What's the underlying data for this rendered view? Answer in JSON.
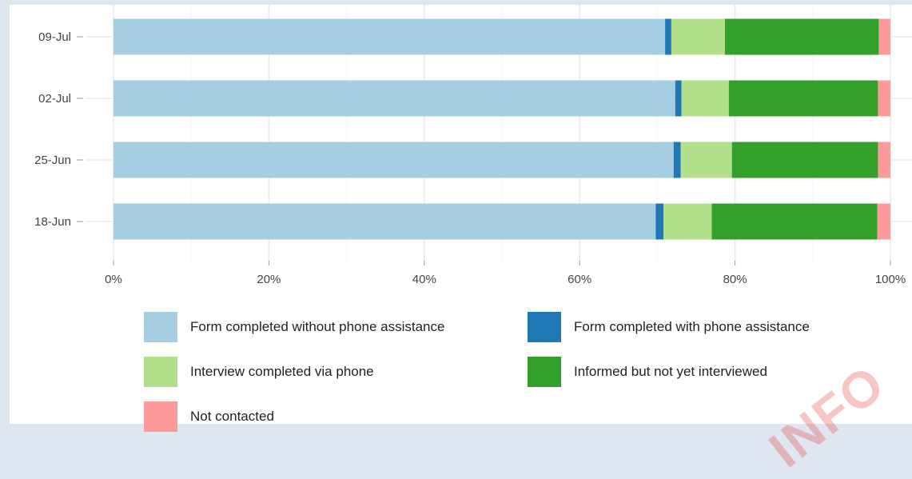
{
  "chart_data": {
    "type": "bar",
    "orientation": "horizontal",
    "stacked": true,
    "categories": [
      "09-Jul",
      "02-Jul",
      "25-Jun",
      "18-Jun"
    ],
    "xlim": [
      0,
      100
    ],
    "x_ticks": [
      "0%",
      "20%",
      "40%",
      "60%",
      "80%",
      "100%"
    ],
    "grid": true,
    "legend_position": "bottom",
    "series": [
      {
        "name": "Form completed without phone assistance",
        "color": "#a6cee3",
        "values": [
          71.0,
          72.3,
          72.1,
          69.8
        ]
      },
      {
        "name": "Form completed with phone assistance",
        "color": "#1f78b4",
        "values": [
          0.8,
          0.8,
          0.9,
          1.0
        ]
      },
      {
        "name": "Interview completed via phone",
        "color": "#b2df8a",
        "values": [
          6.9,
          6.1,
          6.6,
          6.2
        ]
      },
      {
        "name": "Informed but not yet interviewed",
        "color": "#33a02c",
        "values": [
          19.8,
          19.2,
          18.8,
          21.3
        ]
      },
      {
        "name": "Not contacted",
        "color": "#fb9a99",
        "values": [
          1.5,
          1.6,
          1.6,
          1.7
        ]
      }
    ]
  },
  "watermark": "INFO"
}
